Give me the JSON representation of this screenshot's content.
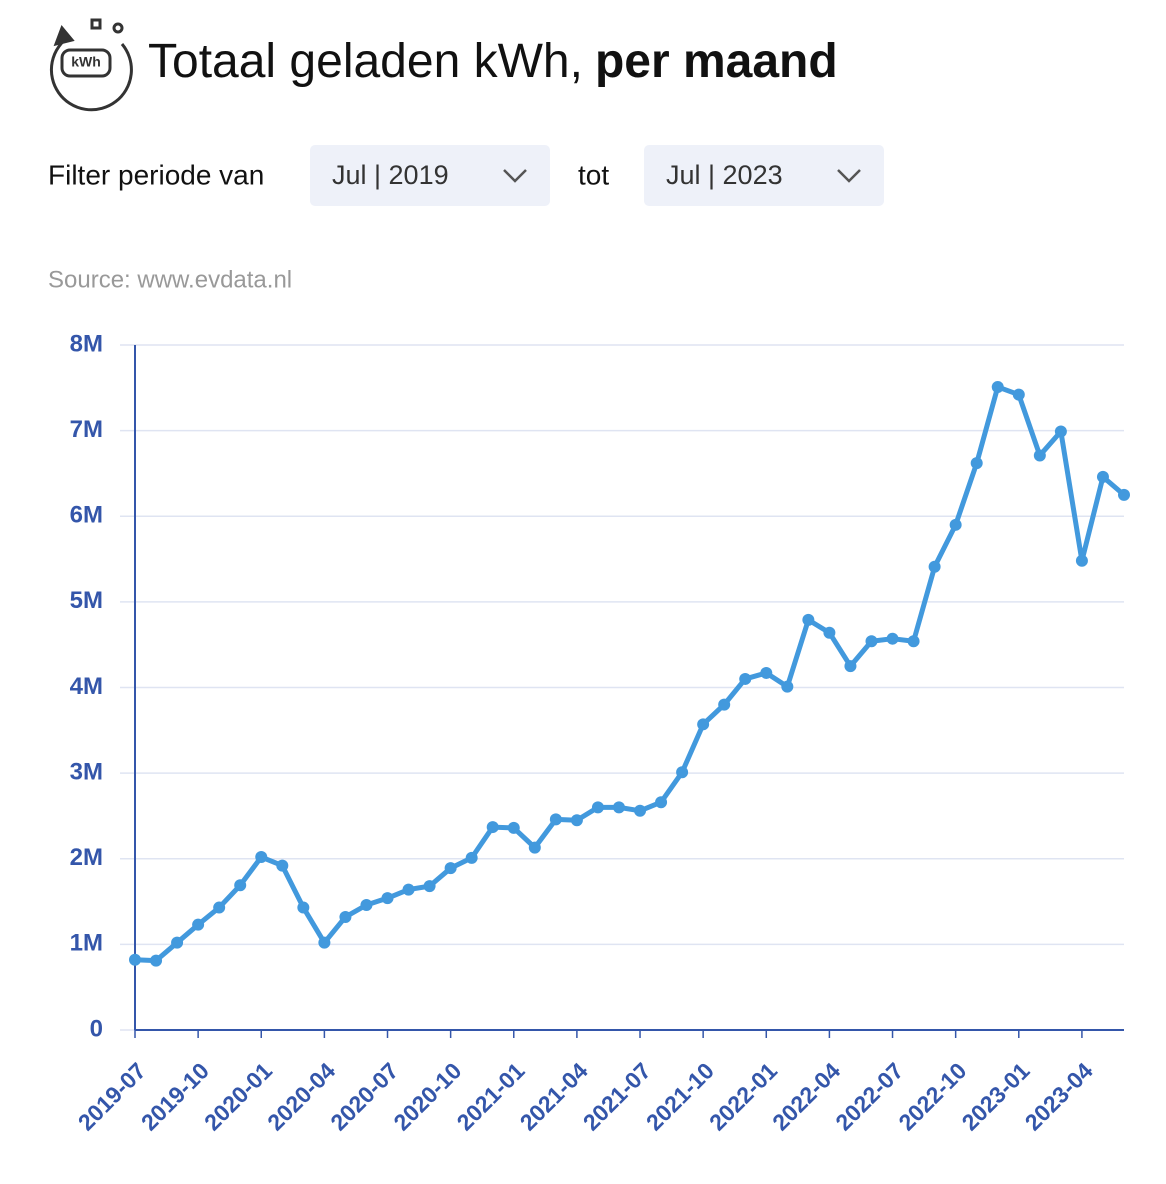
{
  "header": {
    "title": "Totaal geladen kWh,",
    "title_bold": "per maand",
    "icon_label": "kWh"
  },
  "filter": {
    "label": "Filter periode van",
    "from": "Jul | 2019",
    "between": "tot",
    "to": "Jul | 2023"
  },
  "source": "Source: www.evdata.nl",
  "chart_data": {
    "type": "line",
    "categories": [
      "2019-07",
      null,
      null,
      "2019-10",
      null,
      null,
      "2020-01",
      null,
      null,
      "2020-04",
      null,
      null,
      "2020-07",
      null,
      null,
      "2020-10",
      null,
      null,
      "2021-01",
      null,
      null,
      "2021-04",
      null,
      null,
      "2021-07",
      null,
      null,
      "2021-10",
      null,
      null,
      "2022-01",
      null,
      null,
      "2022-04",
      null,
      null,
      "2022-07",
      null,
      null,
      "2022-10",
      null,
      null,
      "2023-01",
      null,
      null,
      "2023-04",
      null,
      null
    ],
    "series": [
      {
        "name": "kWh",
        "color": "#4299dd",
        "values": [
          820000,
          810000,
          1020000,
          1230000,
          1430000,
          1690000,
          2020000,
          1920000,
          1430000,
          1020000,
          1320000,
          1460000,
          1540000,
          1640000,
          1680000,
          1890000,
          2010000,
          2370000,
          2360000,
          2130000,
          2460000,
          2450000,
          2600000,
          2600000,
          2560000,
          2660000,
          3010000,
          3570000,
          3800000,
          4100000,
          4170000,
          4010000,
          4790000,
          4640000,
          4250000,
          4540000,
          4570000,
          4540000,
          5410000,
          5900000,
          6620000,
          7510000,
          7420000,
          6710000,
          6990000,
          5480000,
          6460000,
          6250000
        ]
      }
    ],
    "ylim": [
      0,
      8000000
    ],
    "yticks": [
      0,
      {
        "value": 1000000,
        "label": "1M"
      },
      {
        "value": 2000000,
        "label": "2M"
      },
      {
        "value": 3000000,
        "label": "3M"
      },
      {
        "value": 4000000,
        "label": "4M"
      },
      {
        "value": 5000000,
        "label": "5M"
      },
      {
        "value": 6000000,
        "label": "6M"
      },
      {
        "value": 7000000,
        "label": "7M"
      },
      {
        "value": 8000000,
        "label": "8M"
      }
    ],
    "grid": true
  }
}
